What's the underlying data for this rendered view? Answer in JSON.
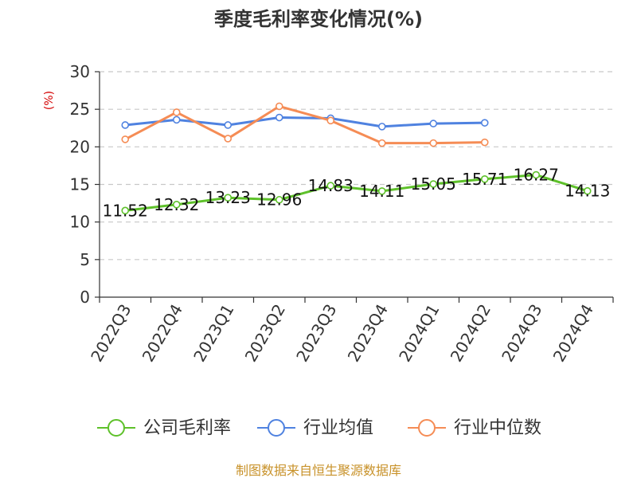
{
  "chart_data": {
    "type": "line",
    "title": "季度毛利率变化情况(%)",
    "ylabel": "(%)",
    "xlabel": "",
    "ylim": [
      0,
      30
    ],
    "yticks": [
      0,
      5,
      10,
      15,
      20,
      25,
      30
    ],
    "grid": true,
    "legend_position": "bottom",
    "categories": [
      "2022Q3",
      "2022Q4",
      "2023Q1",
      "2023Q2",
      "2023Q3",
      "2023Q4",
      "2024Q1",
      "2024Q2",
      "2024Q3",
      "2024Q4"
    ],
    "series": [
      {
        "name": "公司毛利率",
        "color": "#5ec12a",
        "values": [
          11.52,
          12.32,
          13.23,
          12.96,
          14.83,
          14.11,
          15.05,
          15.71,
          16.27,
          14.13
        ],
        "labels": [
          "11.52",
          "12.32",
          "13.23",
          "12.96",
          "14.83",
          "14.11",
          "15.05",
          "15.71",
          "16.27",
          "14.13"
        ]
      },
      {
        "name": "行业均值",
        "color": "#4f82e0",
        "values": [
          22.9,
          23.6,
          22.9,
          23.9,
          23.8,
          22.7,
          23.1,
          23.2,
          null,
          null
        ]
      },
      {
        "name": "行业中位数",
        "color": "#f58c55",
        "values": [
          21.0,
          24.6,
          21.1,
          25.4,
          23.5,
          20.5,
          20.5,
          20.6,
          null,
          null
        ]
      }
    ]
  },
  "source": "制图数据来自恒生聚源数据库"
}
